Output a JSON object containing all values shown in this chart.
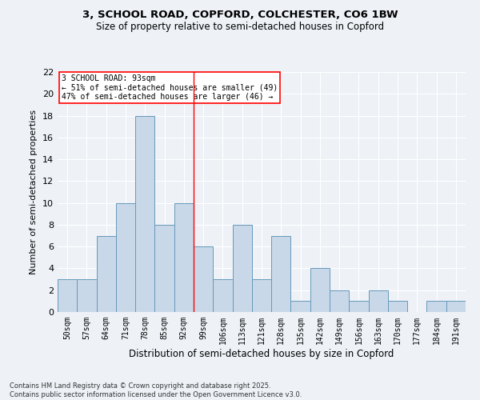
{
  "title_line1": "3, SCHOOL ROAD, COPFORD, COLCHESTER, CO6 1BW",
  "title_line2": "Size of property relative to semi-detached houses in Copford",
  "xlabel": "Distribution of semi-detached houses by size in Copford",
  "ylabel": "Number of semi-detached properties",
  "categories": [
    "50sqm",
    "57sqm",
    "64sqm",
    "71sqm",
    "78sqm",
    "85sqm",
    "92sqm",
    "99sqm",
    "106sqm",
    "113sqm",
    "121sqm",
    "128sqm",
    "135sqm",
    "142sqm",
    "149sqm",
    "156sqm",
    "163sqm",
    "170sqm",
    "177sqm",
    "184sqm",
    "191sqm"
  ],
  "values": [
    3,
    3,
    7,
    10,
    18,
    8,
    10,
    6,
    3,
    8,
    3,
    7,
    1,
    4,
    2,
    1,
    2,
    1,
    0,
    1,
    1
  ],
  "bar_color": "#c8d8e8",
  "bar_edge_color": "#6699bb",
  "vline_x": 6.5,
  "vline_color": "red",
  "ylim": [
    0,
    22
  ],
  "yticks": [
    0,
    2,
    4,
    6,
    8,
    10,
    12,
    14,
    16,
    18,
    20,
    22
  ],
  "annotation_title": "3 SCHOOL ROAD: 93sqm",
  "annotation_line1": "← 51% of semi-detached houses are smaller (49)",
  "annotation_line2": "47% of semi-detached houses are larger (46) →",
  "footer_line1": "Contains HM Land Registry data © Crown copyright and database right 2025.",
  "footer_line2": "Contains public sector information licensed under the Open Government Licence v3.0.",
  "background_color": "#eef2f7",
  "grid_color": "#ffffff",
  "figsize": [
    6.0,
    5.0
  ],
  "dpi": 100
}
